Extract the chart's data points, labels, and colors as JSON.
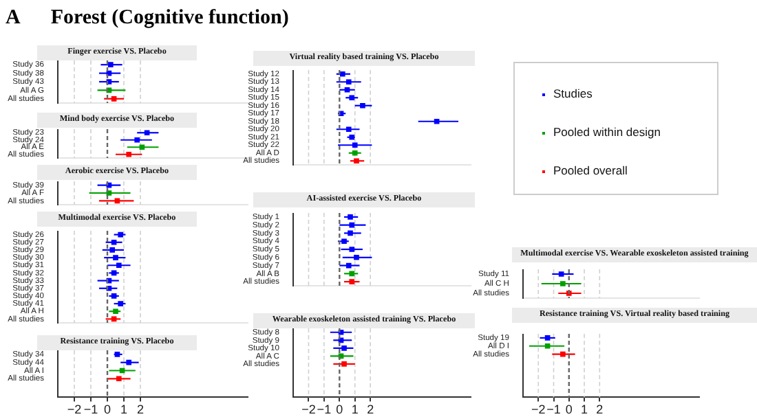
{
  "chart_data": [
    {
      "type": "other",
      "title": "Forest (Cognitive function)",
      "annotations": [
        "A"
      ]
    },
    {
      "type": "scatter",
      "orientation": "horizontal",
      "title": "Finger exercise VS. Placebo",
      "categories": [
        "Study 36",
        "Study 38",
        "Study 43",
        "All A G",
        "All studies"
      ],
      "xlim": [
        -3,
        8.5
      ],
      "xticks": [
        {
          "value": -2,
          "label": null
        },
        {
          "value": -1,
          "label": null
        },
        {
          "value": 0,
          "label": null
        },
        {
          "value": 1,
          "label": null
        },
        {
          "value": 2,
          "label": null
        }
      ],
      "grid": "x",
      "tick_labels": "y",
      "marker": "square",
      "legend": "right",
      "ref_lines": [
        {
          "axis": "x",
          "value": 0,
          "line_style": "dashed",
          "color": "#666666"
        }
      ],
      "series": [
        {
          "name": "Studies",
          "color": "#0000ff",
          "values": [
            0.2,
            0.1,
            0.1,
            null,
            null
          ],
          "errors": [
            [
              -0.4,
              0.9
            ],
            [
              -0.5,
              0.8
            ],
            [
              -0.5,
              0.7
            ],
            null,
            null
          ]
        },
        {
          "name": "Pooled within design",
          "color": "#00a000",
          "values": [
            null,
            null,
            null,
            0.1,
            null
          ],
          "errors": [
            null,
            null,
            null,
            [
              -0.6,
              1.1
            ],
            null
          ]
        },
        {
          "name": "Pooled overall",
          "color": "#ff0000",
          "values": [
            null,
            null,
            null,
            null,
            0.4
          ],
          "errors": [
            null,
            null,
            null,
            null,
            [
              -0.2,
              1.0
            ]
          ]
        }
      ]
    },
    {
      "type": "scatter",
      "orientation": "horizontal",
      "title": "Mind body exercise VS. Placebo",
      "categories": [
        "Study 23",
        "Study 24",
        "All A E",
        "All studies"
      ],
      "xlim": [
        -3,
        8.5
      ],
      "xticks": [
        {
          "value": -2,
          "label": null
        },
        {
          "value": -1,
          "label": null
        },
        {
          "value": 0,
          "label": null
        },
        {
          "value": 1,
          "label": null
        },
        {
          "value": 2,
          "label": null
        }
      ],
      "grid": "x",
      "tick_labels": "y",
      "marker": "square",
      "ref_lines": [
        {
          "axis": "x",
          "value": 0,
          "line_style": "dashed",
          "color": "#666666"
        }
      ],
      "series": [
        {
          "color": "#0000ff",
          "values": [
            2.4,
            1.8,
            null,
            null
          ],
          "errors": [
            [
              1.8,
              3.1
            ],
            [
              0.8,
              2.7
            ],
            null,
            null
          ]
        },
        {
          "color": "#00a000",
          "values": [
            null,
            null,
            2.1,
            null
          ],
          "errors": [
            null,
            null,
            [
              1.2,
              3.1
            ],
            null
          ]
        },
        {
          "color": "#ff0000",
          "values": [
            null,
            null,
            null,
            1.3
          ],
          "errors": [
            null,
            null,
            null,
            [
              0.5,
              2.1
            ]
          ]
        }
      ]
    },
    {
      "type": "scatter",
      "orientation": "horizontal",
      "title": "Aerobic exercise VS. Placebo",
      "categories": [
        "Study 39",
        "All A F",
        "All studies"
      ],
      "xlim": [
        -3,
        8.5
      ],
      "xticks": [
        {
          "value": -2,
          "label": null
        },
        {
          "value": -1,
          "label": null
        },
        {
          "value": 0,
          "label": null
        },
        {
          "value": 1,
          "label": null
        },
        {
          "value": 2,
          "label": null
        }
      ],
      "grid": "x",
      "tick_labels": "y",
      "marker": "square",
      "ref_lines": [
        {
          "axis": "x",
          "value": 0,
          "line_style": "dashed",
          "color": "#666666"
        }
      ],
      "series": [
        {
          "color": "#0000ff",
          "values": [
            0.1,
            null,
            null
          ],
          "errors": [
            [
              -0.6,
              0.8
            ],
            null,
            null
          ]
        },
        {
          "color": "#00a000",
          "values": [
            null,
            0.1,
            null
          ],
          "errors": [
            null,
            [
              -1.1,
              1.4
            ],
            null
          ]
        },
        {
          "color": "#ff0000",
          "values": [
            null,
            null,
            0.6
          ],
          "errors": [
            null,
            null,
            [
              -0.5,
              1.6
            ]
          ]
        }
      ]
    },
    {
      "type": "scatter",
      "orientation": "horizontal",
      "title": "Multimodal exercise VS. Placebo",
      "categories": [
        "Study 26",
        "Study 27",
        "Study 29",
        "Study 30",
        "Study 31",
        "Study 32",
        "Study 33",
        "Study 37",
        "Study 40",
        "Study 41",
        "All A H",
        "All studies"
      ],
      "xlim": [
        -3,
        8.5
      ],
      "xticks": [
        {
          "value": -2,
          "label": null
        },
        {
          "value": -1,
          "label": null
        },
        {
          "value": 0,
          "label": null
        },
        {
          "value": 1,
          "label": null
        },
        {
          "value": 2,
          "label": null
        }
      ],
      "grid": "x",
      "tick_labels": "y",
      "marker": "square",
      "ref_lines": [
        {
          "axis": "x",
          "value": 0,
          "line_style": "dashed",
          "color": "#666666"
        }
      ],
      "series": [
        {
          "color": "#0000ff",
          "values": [
            0.8,
            0.4,
            0.3,
            0.5,
            0.7,
            0.4,
            0.1,
            0.1,
            0.4,
            0.8,
            null,
            null
          ],
          "errors": [
            [
              0.4,
              1.1
            ],
            [
              -0.1,
              0.9
            ],
            [
              -0.3,
              1.0
            ],
            [
              -0.2,
              1.1
            ],
            [
              0.0,
              1.4
            ],
            [
              0.1,
              0.7
            ],
            [
              -0.6,
              0.7
            ],
            [
              -0.5,
              0.6
            ],
            [
              0.1,
              0.7
            ],
            [
              0.4,
              1.1
            ],
            null,
            null
          ]
        },
        {
          "color": "#00a000",
          "values": [
            null,
            null,
            null,
            null,
            null,
            null,
            null,
            null,
            null,
            null,
            0.5,
            null
          ],
          "errors": [
            null,
            null,
            null,
            null,
            null,
            null,
            null,
            null,
            null,
            null,
            [
              0.1,
              0.8
            ],
            null
          ]
        },
        {
          "color": "#ff0000",
          "values": [
            null,
            null,
            null,
            null,
            null,
            null,
            null,
            null,
            null,
            null,
            null,
            0.4
          ],
          "errors": [
            null,
            null,
            null,
            null,
            null,
            null,
            null,
            null,
            null,
            null,
            null,
            [
              -0.1,
              0.8
            ]
          ]
        }
      ]
    },
    {
      "type": "scatter",
      "orientation": "horizontal",
      "title": "Resistance training VS. Placebo",
      "categories": [
        "Study 34",
        "Study 44",
        "All A I",
        "All studies"
      ],
      "xlim": [
        -3,
        8.5
      ],
      "xticks": [
        {
          "value": -2,
          "label": "−2"
        },
        {
          "value": -1,
          "label": "−1"
        },
        0,
        1,
        2
      ],
      "grid": "x",
      "marker": "square",
      "ref_lines": [
        {
          "axis": "x",
          "value": 0,
          "line_style": "dashed",
          "color": "#666666"
        }
      ],
      "series": [
        {
          "color": "#0000ff",
          "values": [
            0.6,
            1.3,
            null,
            null
          ],
          "errors": [
            [
              0.4,
              0.9
            ],
            [
              0.8,
              1.9
            ],
            null,
            null
          ]
        },
        {
          "color": "#00a000",
          "values": [
            null,
            null,
            0.9,
            null
          ],
          "errors": [
            null,
            null,
            [
              0.1,
              1.7
            ],
            null
          ]
        },
        {
          "color": "#ff0000",
          "values": [
            null,
            null,
            null,
            0.7
          ],
          "errors": [
            null,
            null,
            null,
            [
              0.0,
              1.4
            ]
          ]
        }
      ]
    },
    {
      "type": "scatter",
      "orientation": "horizontal",
      "title": "Virtual reality based training VS. Placebo",
      "categories": [
        "Study 12",
        "Study 13",
        "Study 14",
        "Study 15",
        "Study 16",
        "Study 17",
        "Study 18",
        "Study 20",
        "Study 21",
        "Study 22",
        "All A D",
        "All studies"
      ],
      "xlim": [
        -3,
        8.5
      ],
      "xticks": [
        {
          "value": -2,
          "label": null
        },
        {
          "value": -1,
          "label": null
        },
        {
          "value": 0,
          "label": null
        },
        {
          "value": 1,
          "label": null
        },
        {
          "value": 2,
          "label": null
        }
      ],
      "grid": "x",
      "tick_labels": "y",
      "marker": "square",
      "ref_lines": [
        {
          "axis": "x",
          "value": 0,
          "line_style": "dashed",
          "color": "#666666"
        }
      ],
      "series": [
        {
          "color": "#0000ff",
          "values": [
            0.2,
            0.6,
            0.5,
            0.8,
            1.5,
            0.1,
            6.3,
            0.6,
            0.8,
            1.0,
            null,
            null
          ],
          "errors": [
            [
              -0.2,
              0.7
            ],
            [
              -0.2,
              1.4
            ],
            [
              0.0,
              1.0
            ],
            [
              0.4,
              1.2
            ],
            [
              1.0,
              2.1
            ],
            [
              -0.1,
              0.4
            ],
            [
              5.1,
              7.7
            ],
            [
              -0.2,
              1.3
            ],
            [
              0.5,
              1.0
            ],
            [
              -0.1,
              2.1
            ],
            null,
            null
          ]
        },
        {
          "color": "#00a000",
          "values": [
            null,
            null,
            null,
            null,
            null,
            null,
            null,
            null,
            null,
            null,
            1.0,
            null
          ],
          "errors": [
            null,
            null,
            null,
            null,
            null,
            null,
            null,
            null,
            null,
            null,
            [
              0.6,
              1.4
            ],
            null
          ]
        },
        {
          "color": "#ff0000",
          "values": [
            null,
            null,
            null,
            null,
            null,
            null,
            null,
            null,
            null,
            null,
            null,
            1.1
          ],
          "errors": [
            null,
            null,
            null,
            null,
            null,
            null,
            null,
            null,
            null,
            null,
            null,
            [
              0.7,
              1.6
            ]
          ]
        }
      ]
    },
    {
      "type": "scatter",
      "orientation": "horizontal",
      "title": "AI-assisted exercise VS. Placebo",
      "categories": [
        "Study 1",
        "Study 2",
        "Study 3",
        "Study 4",
        "Study 5",
        "Study 6",
        "Study 7",
        "All A B",
        "All studies"
      ],
      "xlim": [
        -3,
        8.5
      ],
      "xticks": [
        {
          "value": -2,
          "label": null
        },
        {
          "value": -1,
          "label": null
        },
        {
          "value": 0,
          "label": null
        },
        {
          "value": 1,
          "label": null
        },
        {
          "value": 2,
          "label": null
        }
      ],
      "grid": "x",
      "tick_labels": "y",
      "marker": "square",
      "ref_lines": [
        {
          "axis": "x",
          "value": 0,
          "line_style": "dashed",
          "color": "#666666"
        }
      ],
      "series": [
        {
          "color": "#0000ff",
          "values": [
            0.7,
            0.8,
            0.7,
            0.3,
            0.8,
            1.1,
            0.6,
            null,
            null
          ],
          "errors": [
            [
              0.3,
              1.2
            ],
            [
              0.0,
              1.7
            ],
            [
              0.3,
              1.4
            ],
            [
              -0.1,
              0.6
            ],
            [
              0.1,
              1.5
            ],
            [
              0.2,
              2.1
            ],
            [
              0.0,
              1.3
            ],
            null,
            null
          ]
        },
        {
          "color": "#00a000",
          "values": [
            null,
            null,
            null,
            null,
            null,
            null,
            null,
            0.8,
            null
          ],
          "errors": [
            null,
            null,
            null,
            null,
            null,
            null,
            null,
            [
              0.3,
              1.2
            ],
            null
          ]
        },
        {
          "color": "#ff0000",
          "values": [
            null,
            null,
            null,
            null,
            null,
            null,
            null,
            null,
            0.8
          ],
          "errors": [
            null,
            null,
            null,
            null,
            null,
            null,
            null,
            null,
            [
              0.3,
              1.3
            ]
          ]
        }
      ]
    },
    {
      "type": "scatter",
      "orientation": "horizontal",
      "title": "Wearable exoskeleton assisted training VS. Placebo",
      "categories": [
        "Study 8",
        "Study 9",
        "Study 10",
        "All A C",
        "All studies"
      ],
      "xlim": [
        -3,
        8.5
      ],
      "xticks": [
        {
          "value": -2,
          "label": "−2"
        },
        {
          "value": -1,
          "label": "−1"
        },
        0,
        1,
        2
      ],
      "grid": "x",
      "marker": "square",
      "ref_lines": [
        {
          "axis": "x",
          "value": 0,
          "line_style": "dashed",
          "color": "#666666"
        }
      ],
      "series": [
        {
          "color": "#0000ff",
          "values": [
            0.1,
            0.1,
            0.3,
            null,
            null
          ],
          "errors": [
            [
              -0.6,
              0.8
            ],
            [
              -0.4,
              0.8
            ],
            [
              -0.4,
              0.9
            ],
            null,
            null
          ]
        },
        {
          "color": "#00a000",
          "values": [
            null,
            null,
            null,
            0.1,
            null
          ],
          "errors": [
            null,
            null,
            null,
            [
              -0.6,
              0.9
            ],
            null
          ]
        },
        {
          "color": "#ff0000",
          "values": [
            null,
            null,
            null,
            null,
            0.3
          ],
          "errors": [
            null,
            null,
            null,
            null,
            [
              -0.4,
              1.0
            ]
          ]
        }
      ]
    },
    {
      "type": "scatter",
      "orientation": "horizontal",
      "title": "Multimodal exercise VS. Wearable exoskeleton assisted training",
      "categories": [
        "Study 11",
        "All C H",
        "All studies"
      ],
      "xlim": [
        -3,
        8.5
      ],
      "xticks": [
        {
          "value": -2,
          "label": null
        },
        {
          "value": -1,
          "label": null
        },
        {
          "value": 0,
          "label": null
        },
        {
          "value": 1,
          "label": null
        },
        {
          "value": 2,
          "label": null
        }
      ],
      "grid": "x",
      "tick_labels": "y",
      "marker": "square",
      "ref_lines": [
        {
          "axis": "x",
          "value": 0,
          "line_style": "dashed",
          "color": "#666666"
        }
      ],
      "series": [
        {
          "color": "#0000ff",
          "values": [
            -0.5,
            null,
            null
          ],
          "errors": [
            [
              -1.1,
              0.3
            ],
            null,
            null
          ]
        },
        {
          "color": "#00a000",
          "values": [
            null,
            -0.4,
            null
          ],
          "errors": [
            null,
            [
              -1.8,
              0.8
            ],
            null
          ]
        },
        {
          "color": "#ff0000",
          "values": [
            null,
            null,
            0.0
          ],
          "errors": [
            null,
            null,
            [
              -0.7,
              0.8
            ]
          ]
        }
      ]
    },
    {
      "type": "scatter",
      "orientation": "horizontal",
      "title": "Resistance training VS. Virtual reality based training",
      "categories": [
        "Study 19",
        "All D I",
        "All studies"
      ],
      "xlim": [
        -3,
        8.5
      ],
      "xticks": [
        {
          "value": -2,
          "label": "−2"
        },
        {
          "value": -1,
          "label": "−1"
        },
        0,
        1,
        2
      ],
      "grid": "x",
      "marker": "square",
      "ref_lines": [
        {
          "axis": "x",
          "value": 0,
          "line_style": "dashed",
          "color": "#666666"
        }
      ],
      "series": [
        {
          "color": "#0000ff",
          "values": [
            -1.4,
            null,
            null
          ],
          "errors": [
            [
              -1.9,
              -0.9
            ],
            null,
            null
          ]
        },
        {
          "color": "#00a000",
          "values": [
            null,
            -1.4,
            null
          ],
          "errors": [
            null,
            [
              -2.6,
              -0.3
            ],
            null
          ]
        },
        {
          "color": "#ff0000",
          "values": [
            null,
            null,
            -0.4
          ],
          "errors": [
            null,
            null,
            [
              -1.1,
              0.4
            ]
          ]
        }
      ]
    }
  ]
}
